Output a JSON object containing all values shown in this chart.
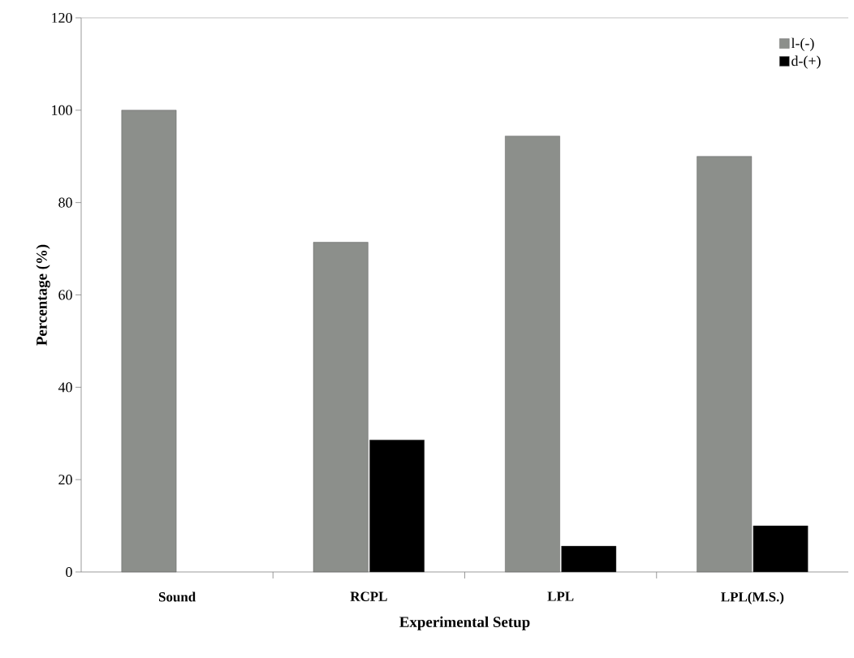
{
  "chart_data": {
    "type": "bar",
    "xlabel": "Experimental Setup",
    "ylabel": "Percentage (%)",
    "categories": [
      "Sound",
      "RCPL",
      "LPL",
      "LPL(M.S.)"
    ],
    "series": [
      {
        "name": "l-(-)",
        "color": "#8c8f8b",
        "values": [
          100,
          71.4,
          94.4,
          90
        ]
      },
      {
        "name": "d-(+)",
        "color": "#000000",
        "values": [
          null,
          28.6,
          5.6,
          10
        ]
      }
    ],
    "ylim": [
      0,
      120
    ],
    "yticks": [
      0,
      20,
      40,
      60,
      80,
      100,
      120
    ],
    "legend": "top right"
  }
}
